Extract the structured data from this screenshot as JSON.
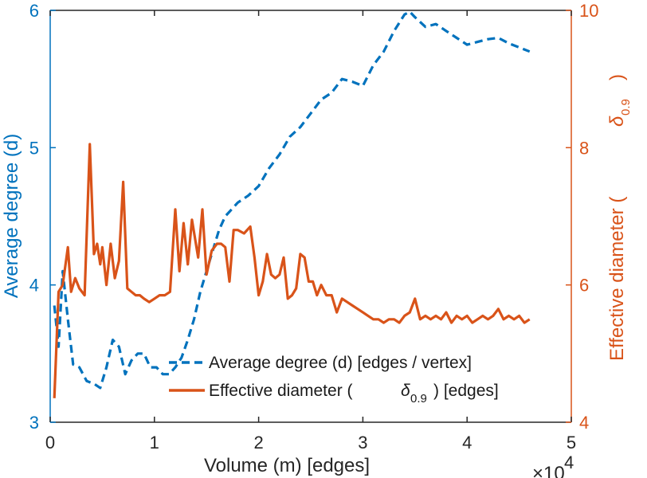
{
  "chart_data": {
    "type": "line",
    "xlabel": "Volume (m) [edges]",
    "x_exponent_base": "×10",
    "x_exponent_power": "4",
    "x_ticks": [
      "0",
      "1",
      "2",
      "3",
      "4",
      "5"
    ],
    "xlim": [
      0,
      5
    ],
    "ylabel_left": "Average degree (d)",
    "ylim_left": [
      3,
      6
    ],
    "y_ticks_left": [
      "3",
      "4",
      "5",
      "6"
    ],
    "ylabel_right_prefix": "Effective diameter (",
    "ylabel_right_symbol": "δ",
    "ylabel_right_subscript": "0.9",
    "ylabel_right_suffix": ")",
    "ylim_right": [
      4,
      10
    ],
    "y_ticks_right": [
      "4",
      "6",
      "8",
      "10"
    ],
    "colors": {
      "left": "#0072bd",
      "right": "#d95319",
      "axis": "#262626"
    },
    "legend": {
      "placement": "bottom-center",
      "entries": [
        {
          "label": "Average degree (d) [edges / vertex]",
          "style": "dashed",
          "series": "avg_degree"
        },
        {
          "label_prefix": "Effective diameter (",
          "symbol": "δ",
          "subscript": "0.9",
          "label_suffix": ") [edges]",
          "style": "solid",
          "series": "eff_diameter"
        }
      ]
    },
    "series": [
      {
        "name": "avg_degree",
        "axis": "left",
        "color": "#0072bd",
        "style": "dashed",
        "x": [
          0.04,
          0.08,
          0.12,
          0.17,
          0.22,
          0.28,
          0.35,
          0.42,
          0.48,
          0.54,
          0.6,
          0.66,
          0.72,
          0.78,
          0.84,
          0.9,
          0.96,
          1.02,
          1.08,
          1.14,
          1.2,
          1.26,
          1.32,
          1.38,
          1.44,
          1.5,
          1.56,
          1.62,
          1.68,
          1.74,
          1.8,
          1.9,
          2.0,
          2.1,
          2.2,
          2.3,
          2.4,
          2.5,
          2.6,
          2.7,
          2.8,
          2.9,
          3.0,
          3.1,
          3.2,
          3.3,
          3.4,
          3.45,
          3.5,
          3.6,
          3.7,
          3.8,
          3.9,
          4.0,
          4.1,
          4.2,
          4.3,
          4.4,
          4.5,
          4.6
        ],
        "values": [
          3.85,
          3.55,
          4.1,
          3.75,
          3.42,
          3.4,
          3.3,
          3.28,
          3.25,
          3.4,
          3.6,
          3.55,
          3.35,
          3.45,
          3.5,
          3.5,
          3.4,
          3.4,
          3.35,
          3.35,
          3.4,
          3.47,
          3.6,
          3.75,
          3.95,
          4.1,
          4.25,
          4.4,
          4.5,
          4.55,
          4.6,
          4.65,
          4.72,
          4.85,
          4.95,
          5.08,
          5.15,
          5.25,
          5.35,
          5.4,
          5.5,
          5.48,
          5.45,
          5.6,
          5.7,
          5.85,
          5.97,
          5.99,
          5.95,
          5.88,
          5.9,
          5.85,
          5.8,
          5.75,
          5.77,
          5.79,
          5.8,
          5.76,
          5.73,
          5.7
        ]
      },
      {
        "name": "eff_diameter",
        "axis": "right",
        "color": "#d95319",
        "style": "solid",
        "x": [
          0.04,
          0.08,
          0.12,
          0.17,
          0.2,
          0.24,
          0.28,
          0.33,
          0.38,
          0.42,
          0.45,
          0.48,
          0.5,
          0.54,
          0.58,
          0.62,
          0.66,
          0.7,
          0.74,
          0.78,
          0.82,
          0.86,
          0.9,
          0.95,
          1.0,
          1.05,
          1.1,
          1.15,
          1.2,
          1.24,
          1.28,
          1.32,
          1.36,
          1.42,
          1.46,
          1.5,
          1.55,
          1.6,
          1.64,
          1.68,
          1.72,
          1.76,
          1.8,
          1.86,
          1.92,
          1.96,
          2.0,
          2.04,
          2.08,
          2.12,
          2.16,
          2.2,
          2.24,
          2.28,
          2.32,
          2.36,
          2.4,
          2.44,
          2.48,
          2.52,
          2.56,
          2.6,
          2.65,
          2.7,
          2.75,
          2.8,
          2.85,
          2.9,
          2.95,
          3.0,
          3.05,
          3.1,
          3.15,
          3.2,
          3.25,
          3.3,
          3.35,
          3.4,
          3.45,
          3.5,
          3.55,
          3.6,
          3.65,
          3.7,
          3.75,
          3.8,
          3.85,
          3.9,
          3.95,
          4.0,
          4.05,
          4.1,
          4.15,
          4.2,
          4.25,
          4.3,
          4.35,
          4.4,
          4.45,
          4.5,
          4.55,
          4.6
        ],
        "values": [
          4.35,
          5.9,
          6.0,
          6.55,
          5.9,
          6.1,
          5.95,
          5.85,
          8.05,
          6.45,
          6.6,
          6.3,
          6.55,
          6.0,
          6.6,
          6.1,
          6.35,
          7.5,
          5.95,
          5.9,
          5.85,
          5.85,
          5.8,
          5.75,
          5.8,
          5.85,
          5.85,
          5.9,
          7.1,
          6.2,
          6.9,
          6.3,
          6.95,
          6.4,
          7.1,
          6.15,
          6.5,
          6.6,
          6.6,
          6.55,
          6.05,
          6.8,
          6.8,
          6.75,
          6.85,
          6.4,
          5.85,
          6.05,
          6.45,
          6.15,
          6.1,
          6.15,
          6.4,
          5.8,
          5.85,
          5.95,
          6.45,
          6.4,
          6.05,
          6.05,
          5.85,
          6.0,
          5.85,
          5.85,
          5.6,
          5.8,
          5.75,
          5.7,
          5.65,
          5.6,
          5.55,
          5.5,
          5.5,
          5.45,
          5.5,
          5.5,
          5.45,
          5.55,
          5.6,
          5.8,
          5.5,
          5.55,
          5.5,
          5.55,
          5.5,
          5.6,
          5.45,
          5.55,
          5.5,
          5.55,
          5.45,
          5.5,
          5.55,
          5.5,
          5.55,
          5.65,
          5.5,
          5.55,
          5.5,
          5.55,
          5.45,
          5.5
        ]
      }
    ]
  }
}
